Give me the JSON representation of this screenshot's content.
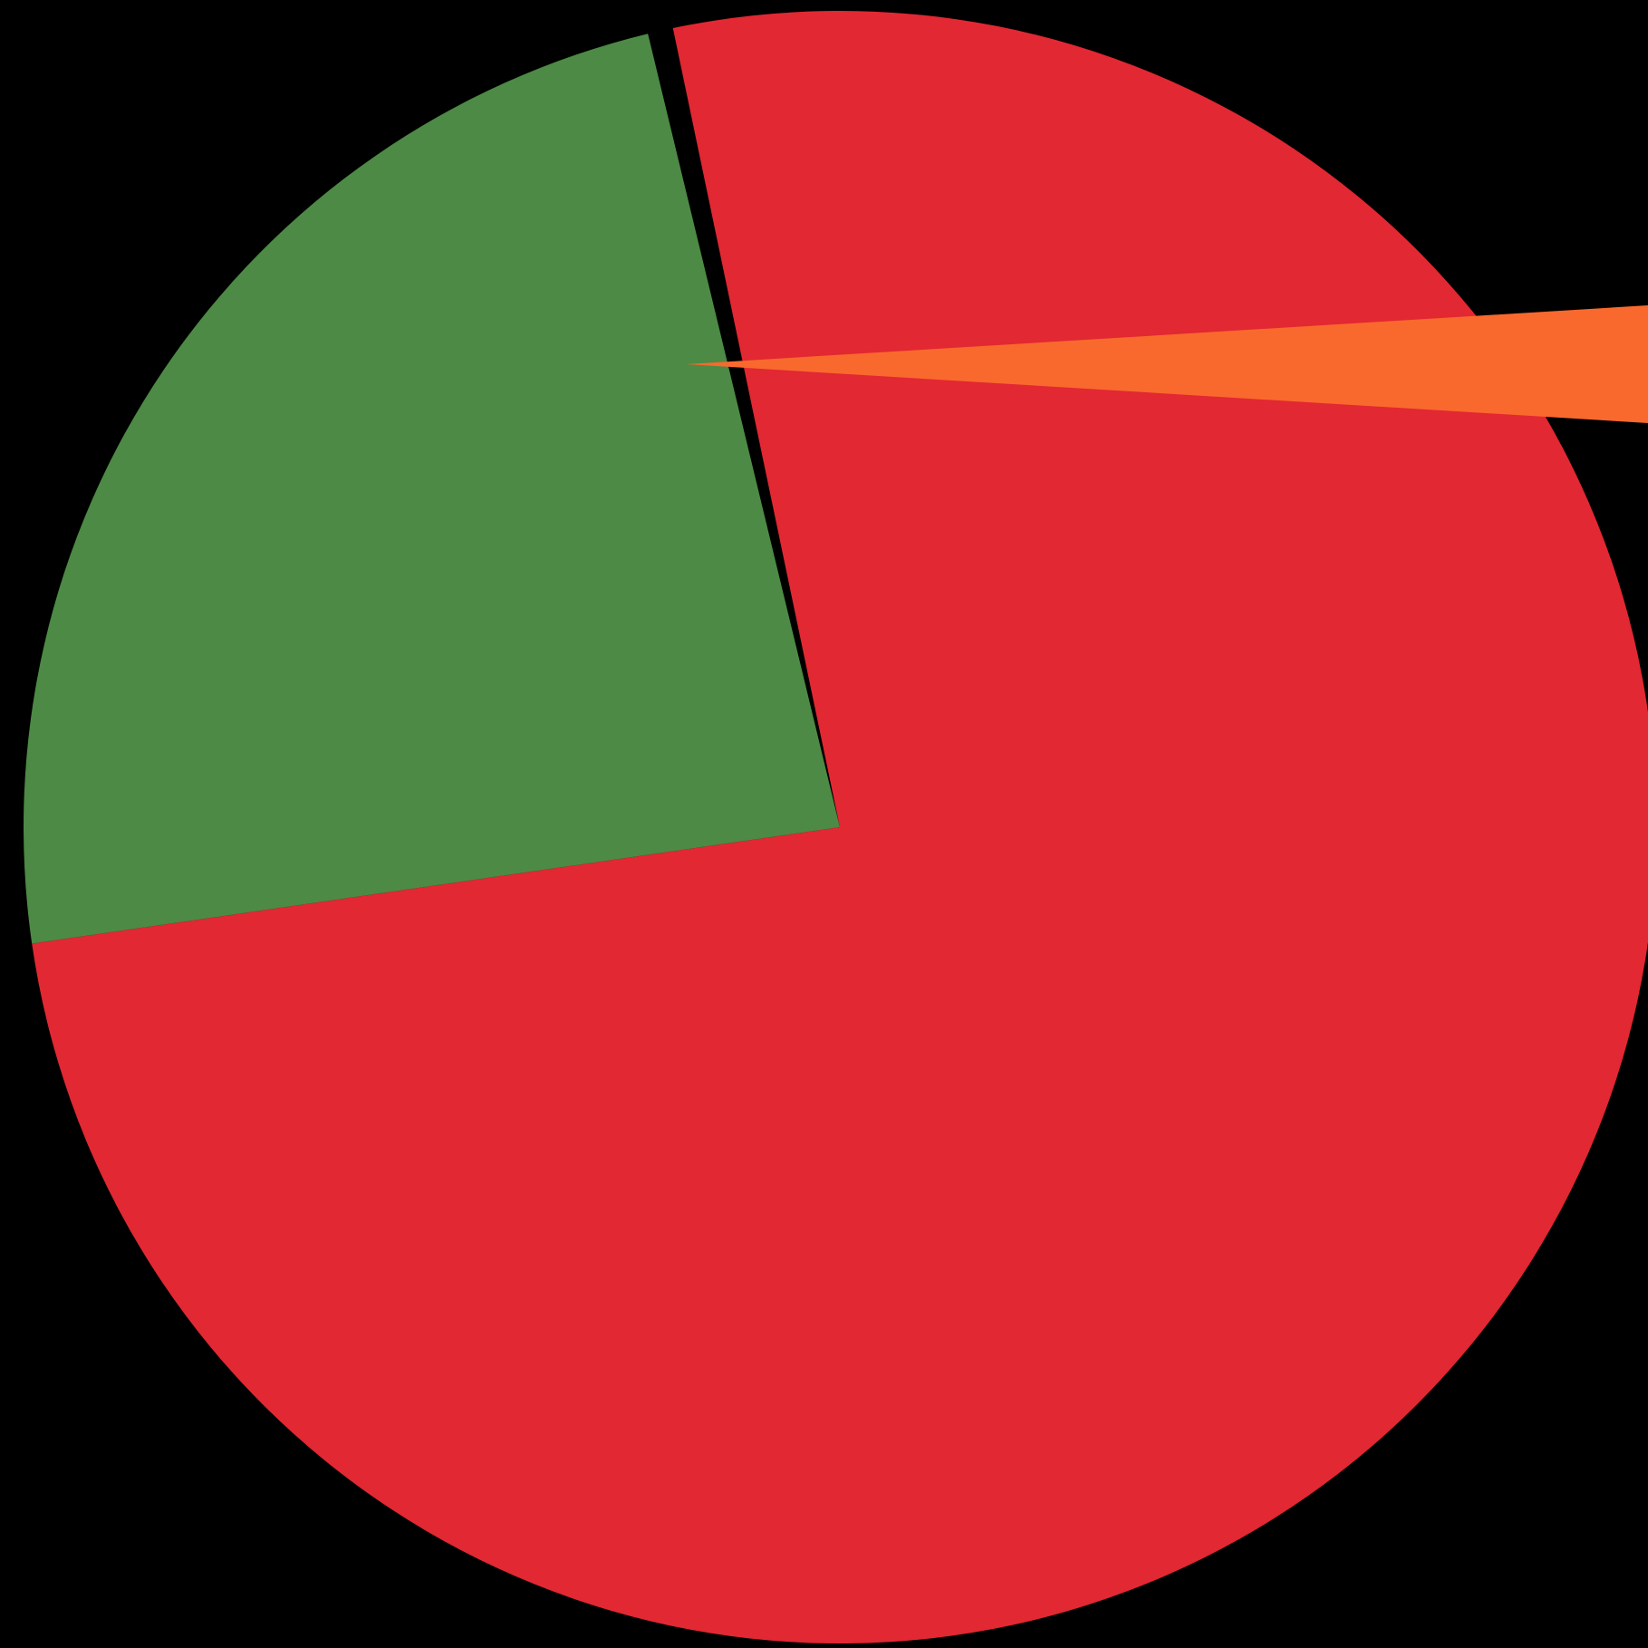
{
  "chart_data": {
    "type": "pie",
    "background": "#000000",
    "slices": [
      {
        "value": 76.0,
        "color": "#E22833"
      },
      {
        "value": 23.5,
        "color": "#4D8A45"
      },
      {
        "value": 0.5,
        "color": "#F9692D",
        "exploded": true
      }
    ],
    "title": "",
    "legend": "none"
  }
}
